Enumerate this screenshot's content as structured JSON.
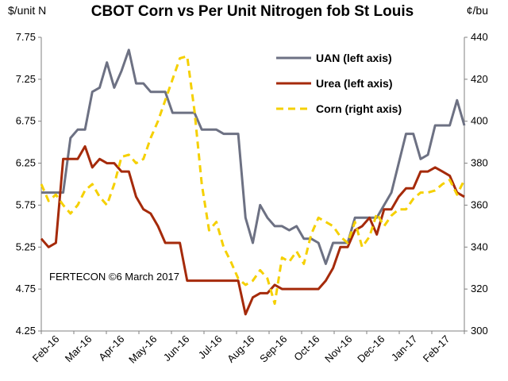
{
  "chart_data": {
    "type": "line",
    "title": "CBOT Corn vs Per Unit Nitrogen fob St Louis",
    "left_axis_unit": "$/unit N",
    "right_axis_unit": "¢/bu",
    "ylim_left": [
      4.25,
      7.75
    ],
    "yticks_left": [
      "4.25",
      "4.75",
      "5.25",
      "5.75",
      "6.25",
      "6.75",
      "7.25",
      "7.75"
    ],
    "ylim_right": [
      300,
      440
    ],
    "yticks_right": [
      "300",
      "320",
      "340",
      "360",
      "380",
      "400",
      "420",
      "440"
    ],
    "x_tick_labels": [
      "Feb-16",
      "Mar-16",
      "Apr-16",
      "May-16",
      "Jun-16",
      "Jul-16",
      "Aug-16",
      "Sep-16",
      "Oct-16",
      "Nov-16",
      "Dec-16",
      "Jan-17",
      "Feb-17"
    ],
    "x_range_weeks": [
      0,
      58
    ],
    "grid": false,
    "legend_position": "top-right",
    "annotation": "FERTECON ©6 March 2017",
    "colors": {
      "uan": "#6d7183",
      "urea": "#a52a0a",
      "corn": "#f5d000"
    },
    "series": [
      {
        "name": "UAN (left axis)",
        "axis": "left",
        "style": "solid",
        "points": [
          [
            0,
            5.9
          ],
          [
            2,
            5.9
          ],
          [
            3,
            5.9
          ],
          [
            4,
            6.55
          ],
          [
            5,
            6.65
          ],
          [
            6,
            6.65
          ],
          [
            7,
            7.1
          ],
          [
            8,
            7.15
          ],
          [
            9,
            7.45
          ],
          [
            10,
            7.15
          ],
          [
            11,
            7.35
          ],
          [
            12,
            7.6
          ],
          [
            13,
            7.2
          ],
          [
            14,
            7.2
          ],
          [
            15,
            7.1
          ],
          [
            16,
            7.1
          ],
          [
            17,
            7.1
          ],
          [
            18,
            6.85
          ],
          [
            19,
            6.85
          ],
          [
            20,
            6.85
          ],
          [
            21,
            6.85
          ],
          [
            22,
            6.65
          ],
          [
            23,
            6.65
          ],
          [
            24,
            6.65
          ],
          [
            25,
            6.6
          ],
          [
            26,
            6.6
          ],
          [
            27,
            6.6
          ],
          [
            28,
            5.6
          ],
          [
            29,
            5.3
          ],
          [
            30,
            5.75
          ],
          [
            31,
            5.6
          ],
          [
            32,
            5.5
          ],
          [
            33,
            5.5
          ],
          [
            34,
            5.45
          ],
          [
            35,
            5.5
          ],
          [
            36,
            5.35
          ],
          [
            37,
            5.35
          ],
          [
            38,
            5.3
          ],
          [
            39,
            5.05
          ],
          [
            40,
            5.3
          ],
          [
            41,
            5.3
          ],
          [
            42,
            5.3
          ],
          [
            43,
            5.6
          ],
          [
            44,
            5.6
          ],
          [
            45,
            5.6
          ],
          [
            46,
            5.6
          ],
          [
            47,
            5.75
          ],
          [
            48,
            5.9
          ],
          [
            49,
            6.25
          ],
          [
            50,
            6.6
          ],
          [
            51,
            6.6
          ],
          [
            52,
            6.3
          ],
          [
            53,
            6.35
          ],
          [
            54,
            6.7
          ],
          [
            55,
            6.7
          ],
          [
            56,
            6.7
          ],
          [
            57,
            7.0
          ],
          [
            58,
            6.7
          ]
        ]
      },
      {
        "name": "Urea (left axis)",
        "axis": "left",
        "style": "solid",
        "points": [
          [
            0,
            5.35
          ],
          [
            1,
            5.25
          ],
          [
            2,
            5.3
          ],
          [
            3,
            6.3
          ],
          [
            4,
            6.3
          ],
          [
            5,
            6.3
          ],
          [
            6,
            6.45
          ],
          [
            7,
            6.2
          ],
          [
            8,
            6.3
          ],
          [
            9,
            6.25
          ],
          [
            10,
            6.25
          ],
          [
            11,
            6.15
          ],
          [
            12,
            6.15
          ],
          [
            13,
            5.85
          ],
          [
            14,
            5.7
          ],
          [
            15,
            5.65
          ],
          [
            16,
            5.5
          ],
          [
            17,
            5.3
          ],
          [
            18,
            5.3
          ],
          [
            19,
            5.3
          ],
          [
            20,
            4.85
          ],
          [
            21,
            4.85
          ],
          [
            22,
            4.85
          ],
          [
            23,
            4.85
          ],
          [
            24,
            4.85
          ],
          [
            25,
            4.85
          ],
          [
            26,
            4.85
          ],
          [
            27,
            4.85
          ],
          [
            28,
            4.45
          ],
          [
            29,
            4.65
          ],
          [
            30,
            4.7
          ],
          [
            31,
            4.7
          ],
          [
            32,
            4.8
          ],
          [
            33,
            4.75
          ],
          [
            34,
            4.75
          ],
          [
            35,
            4.75
          ],
          [
            36,
            4.75
          ],
          [
            37,
            4.75
          ],
          [
            38,
            4.75
          ],
          [
            39,
            4.85
          ],
          [
            40,
            5.0
          ],
          [
            41,
            5.25
          ],
          [
            42,
            5.25
          ],
          [
            43,
            5.45
          ],
          [
            44,
            5.5
          ],
          [
            45,
            5.6
          ],
          [
            46,
            5.4
          ],
          [
            47,
            5.7
          ],
          [
            48,
            5.7
          ],
          [
            49,
            5.85
          ],
          [
            50,
            5.95
          ],
          [
            51,
            5.95
          ],
          [
            52,
            6.15
          ],
          [
            53,
            6.15
          ],
          [
            54,
            6.2
          ],
          [
            55,
            6.15
          ],
          [
            56,
            6.1
          ],
          [
            57,
            5.9
          ],
          [
            58,
            5.85
          ]
        ]
      },
      {
        "name": "Corn (right axis)",
        "axis": "right",
        "style": "dashed",
        "points": [
          [
            0,
            370
          ],
          [
            1,
            362
          ],
          [
            2,
            365
          ],
          [
            3,
            360
          ],
          [
            4,
            356
          ],
          [
            5,
            360
          ],
          [
            6,
            367
          ],
          [
            7,
            370
          ],
          [
            8,
            364
          ],
          [
            9,
            360
          ],
          [
            10,
            370
          ],
          [
            11,
            383
          ],
          [
            12,
            384
          ],
          [
            13,
            380
          ],
          [
            14,
            382
          ],
          [
            15,
            392
          ],
          [
            16,
            400
          ],
          [
            17,
            410
          ],
          [
            18,
            420
          ],
          [
            19,
            430
          ],
          [
            20,
            431
          ],
          [
            21,
            405
          ],
          [
            22,
            370
          ],
          [
            23,
            348
          ],
          [
            24,
            352
          ],
          [
            25,
            340
          ],
          [
            26,
            333
          ],
          [
            27,
            325
          ],
          [
            28,
            322
          ],
          [
            29,
            324
          ],
          [
            30,
            329
          ],
          [
            31,
            325
          ],
          [
            32,
            313
          ],
          [
            33,
            335
          ],
          [
            34,
            333
          ],
          [
            35,
            338
          ],
          [
            36,
            332
          ],
          [
            37,
            346
          ],
          [
            38,
            354
          ],
          [
            39,
            352
          ],
          [
            40,
            350
          ],
          [
            41,
            345
          ],
          [
            42,
            342
          ],
          [
            43,
            352
          ],
          [
            44,
            340
          ],
          [
            45,
            345
          ],
          [
            46,
            356
          ],
          [
            47,
            350
          ],
          [
            48,
            355
          ],
          [
            49,
            358
          ],
          [
            50,
            358
          ],
          [
            51,
            363
          ],
          [
            52,
            366
          ],
          [
            53,
            366
          ],
          [
            54,
            367
          ],
          [
            55,
            370
          ],
          [
            56,
            372
          ],
          [
            57,
            365
          ],
          [
            58,
            372
          ]
        ]
      }
    ]
  }
}
